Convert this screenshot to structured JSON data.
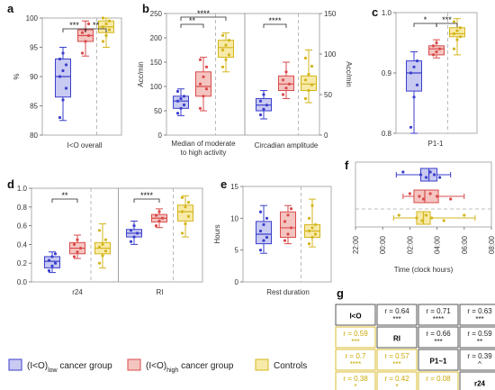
{
  "colors": {
    "low": "#3b3fcc",
    "high": "#d94b4b",
    "ctrl": "#d4b51c",
    "low_fill": "#c8caf2",
    "high_fill": "#f4c4c0",
    "ctrl_fill": "#f7eaa8"
  },
  "panels": {
    "a": "a",
    "b": "b",
    "c": "c",
    "d": "d",
    "e": "e",
    "f": "f",
    "g": "g"
  },
  "chart_data": [
    {
      "id": "a",
      "type": "box",
      "ylabel": "%",
      "ylim": [
        80,
        100
      ],
      "yticks": [
        "80",
        "85",
        "90",
        "95",
        "100"
      ],
      "categories": [
        "I<O overall"
      ],
      "groups": [
        {
          "series": "low",
          "min": 82.5,
          "q1": 86.5,
          "median": 90,
          "q3": 93,
          "max": 95,
          "points": [
            83,
            86,
            88,
            90,
            91,
            92,
            93,
            94
          ]
        },
        {
          "series": "high",
          "min": 93.5,
          "q1": 96,
          "median": 97,
          "q3": 98,
          "max": 99.5,
          "points": [
            94,
            96,
            97,
            97.5,
            98,
            99
          ]
        },
        {
          "series": "ctrl",
          "min": 95,
          "q1": 97.5,
          "median": 98.5,
          "q3": 99.5,
          "max": 100,
          "points": [
            96,
            97,
            98,
            98.5,
            99,
            99.5,
            100
          ]
        }
      ],
      "sig": [
        {
          "label": "***",
          "from": 0,
          "to": 1
        },
        {
          "label": "**",
          "from": 1,
          "to": 2
        }
      ]
    },
    {
      "id": "b",
      "type": "box",
      "ylabel": "Acc/min",
      "ylabel_right": "Acc/min",
      "ylim": [
        0,
        250
      ],
      "yticks": [
        "0",
        "50",
        "100",
        "150",
        "200",
        "250"
      ],
      "ylim_right": [
        0,
        150
      ],
      "yticks_right": [
        "0",
        "50",
        "100",
        "150"
      ],
      "categories": [
        "Median of moderate to high activity",
        "Circadian amplitude"
      ],
      "groups": [
        {
          "series": "low",
          "min": 40,
          "q1": 55,
          "median": 70,
          "q3": 80,
          "max": 95,
          "points": [
            45,
            55,
            62,
            70,
            75,
            80,
            90
          ]
        },
        {
          "series": "high",
          "min": 50,
          "q1": 80,
          "median": 100,
          "q3": 130,
          "max": 160,
          "points": [
            55,
            80,
            95,
            105,
            120,
            140,
            155
          ]
        },
        {
          "series": "ctrl",
          "min": 130,
          "q1": 160,
          "median": 180,
          "q3": 195,
          "max": 210,
          "points": [
            140,
            155,
            165,
            175,
            185,
            195,
            205
          ]
        },
        {
          "series": "low",
          "min": 20,
          "q1": 30,
          "median": 37,
          "q3": 45,
          "max": 55,
          "axis": "right",
          "points": [
            25,
            32,
            37,
            42,
            50
          ]
        },
        {
          "series": "high",
          "min": 45,
          "q1": 55,
          "median": 63,
          "q3": 73,
          "max": 90,
          "axis": "right",
          "points": [
            50,
            58,
            63,
            68,
            78
          ]
        },
        {
          "series": "ctrl",
          "min": 40,
          "q1": 55,
          "median": 63,
          "q3": 73,
          "max": 105,
          "axis": "right",
          "points": [
            45,
            55,
            62,
            68,
            75,
            85,
            95
          ]
        }
      ],
      "sig": [
        {
          "label": "**",
          "from": 0,
          "to": 1
        },
        {
          "label": "****",
          "from": 0,
          "to": 2
        },
        {
          "label": "****",
          "from": 3,
          "to": 4
        }
      ]
    },
    {
      "id": "c",
      "type": "box",
      "ylim": [
        0.8,
        1.0
      ],
      "yticks": [
        "0.8",
        "0.9",
        "1.0"
      ],
      "categories": [
        "P1-1"
      ],
      "groups": [
        {
          "series": "low",
          "min": 0.8,
          "q1": 0.87,
          "median": 0.9,
          "q3": 0.92,
          "max": 0.935,
          "points": [
            0.81,
            0.86,
            0.88,
            0.9,
            0.91,
            0.92
          ]
        },
        {
          "series": "high",
          "min": 0.925,
          "q1": 0.93,
          "median": 0.94,
          "q3": 0.945,
          "max": 0.955,
          "points": [
            0.93,
            0.935,
            0.94,
            0.945,
            0.95
          ]
        },
        {
          "series": "ctrl",
          "min": 0.93,
          "q1": 0.96,
          "median": 0.965,
          "q3": 0.975,
          "max": 0.99,
          "points": [
            0.94,
            0.955,
            0.96,
            0.965,
            0.97,
            0.975,
            0.985
          ]
        }
      ],
      "sig": [
        {
          "label": "*",
          "from": 0,
          "to": 1
        },
        {
          "label": "***",
          "from": 1,
          "to": 2
        }
      ]
    },
    {
      "id": "d",
      "type": "box",
      "ylim": [
        0,
        1.0
      ],
      "yticks": [
        "0.0",
        "0.2",
        "0.4",
        "0.6",
        "0.8",
        "1.0"
      ],
      "categories": [
        "r24",
        "RI"
      ],
      "groups": [
        {
          "series": "low",
          "min": 0.1,
          "q1": 0.15,
          "median": 0.22,
          "q3": 0.27,
          "max": 0.32,
          "points": [
            0.12,
            0.17,
            0.2,
            0.23,
            0.27,
            0.3
          ]
        },
        {
          "series": "high",
          "min": 0.25,
          "q1": 0.3,
          "median": 0.36,
          "q3": 0.42,
          "max": 0.5,
          "points": [
            0.27,
            0.32,
            0.36,
            0.4,
            0.45
          ]
        },
        {
          "series": "ctrl",
          "min": 0.15,
          "q1": 0.3,
          "median": 0.36,
          "q3": 0.42,
          "max": 0.62,
          "points": [
            0.2,
            0.28,
            0.33,
            0.37,
            0.4,
            0.45,
            0.55
          ]
        },
        {
          "series": "low",
          "min": 0.4,
          "q1": 0.48,
          "median": 0.52,
          "q3": 0.56,
          "max": 0.65,
          "points": [
            0.43,
            0.48,
            0.52,
            0.55,
            0.6
          ]
        },
        {
          "series": "high",
          "min": 0.58,
          "q1": 0.64,
          "median": 0.68,
          "q3": 0.72,
          "max": 0.78,
          "points": [
            0.6,
            0.65,
            0.68,
            0.71,
            0.75
          ]
        },
        {
          "series": "ctrl",
          "min": 0.48,
          "q1": 0.65,
          "median": 0.75,
          "q3": 0.82,
          "max": 0.92,
          "points": [
            0.52,
            0.62,
            0.7,
            0.75,
            0.8,
            0.85,
            0.9
          ]
        }
      ],
      "sig": [
        {
          "label": "**",
          "from": 0,
          "to": 1
        },
        {
          "label": "****",
          "from": 3,
          "to": 4
        }
      ]
    },
    {
      "id": "e",
      "type": "box",
      "ylabel": "Hours",
      "ylim": [
        0,
        15
      ],
      "yticks": [
        "0",
        "5",
        "10",
        "15"
      ],
      "categories": [
        "Rest duration"
      ],
      "groups": [
        {
          "series": "low",
          "min": 4.5,
          "q1": 6,
          "median": 7.5,
          "q3": 9.5,
          "max": 12,
          "points": [
            5,
            6.5,
            7,
            8,
            9,
            10,
            11
          ]
        },
        {
          "series": "high",
          "min": 6,
          "q1": 7,
          "median": 8.5,
          "q3": 11,
          "max": 12,
          "points": [
            6.5,
            7.5,
            8.5,
            9.5,
            10.5,
            11.5
          ]
        },
        {
          "series": "ctrl",
          "min": 5.5,
          "q1": 7,
          "median": 8,
          "q3": 9,
          "max": 13,
          "points": [
            6,
            7,
            7.5,
            8,
            8.5,
            9,
            10,
            12
          ]
        }
      ],
      "sig": []
    },
    {
      "id": "f",
      "type": "box-horizontal",
      "xlabel": "Time (clock hours)",
      "xticks": [
        "22:00",
        "00:00",
        "02:00",
        "04:00",
        "06:00",
        "08:00"
      ],
      "xlim": [
        -2,
        8
      ],
      "groups": [
        {
          "series": "low",
          "min": 1.0,
          "q1": 2.8,
          "median": 3.4,
          "q3": 4.0,
          "max": 5.0,
          "points": [
            1.5,
            2.8,
            3.2,
            3.5,
            3.8,
            4.2
          ]
        },
        {
          "series": "high",
          "min": 1.5,
          "q1": 2.3,
          "median": 3.1,
          "q3": 4.1,
          "max": 6.0,
          "points": [
            2,
            2.7,
            3,
            3.5,
            4,
            5
          ]
        },
        {
          "series": "ctrl",
          "min": 0.8,
          "q1": 2.5,
          "median": 3.0,
          "q3": 3.5,
          "max": 6.8,
          "points": [
            1.2,
            2.5,
            2.9,
            3.2,
            3.6,
            4.5,
            6
          ]
        }
      ]
    }
  ],
  "matrix": {
    "labels": [
      "I<O",
      "RI",
      "P1~1",
      "r24"
    ],
    "upper": [
      {
        "r": "r = 0.64",
        "s": "***"
      },
      {
        "r": "r = 0.71",
        "s": "****"
      },
      {
        "r": "r = 0.63",
        "s": "***"
      },
      {
        "r": "r = 0.66",
        "s": "***"
      },
      {
        "r": "r = 0.59",
        "s": "**"
      },
      {
        "r": "r = 0.39",
        "s": "^"
      }
    ],
    "lower": [
      {
        "r": "r = 0.59",
        "s": "***"
      },
      {
        "r": "r = 0.7",
        "s": "****"
      },
      {
        "r": "r = 0.57",
        "s": "***"
      },
      {
        "r": "r = 0.38",
        "s": "*"
      },
      {
        "r": "r = 0.42",
        "s": "*"
      },
      {
        "r": "r = 0.08",
        "s": ""
      }
    ]
  },
  "legend": [
    {
      "series": "low",
      "text": "(I<O)",
      "sub": "low",
      "tail": " cancer group"
    },
    {
      "series": "high",
      "text": "(I<O)",
      "sub": "high",
      "tail": " cancer group"
    },
    {
      "series": "ctrl",
      "text": "Controls",
      "sub": "",
      "tail": ""
    }
  ]
}
